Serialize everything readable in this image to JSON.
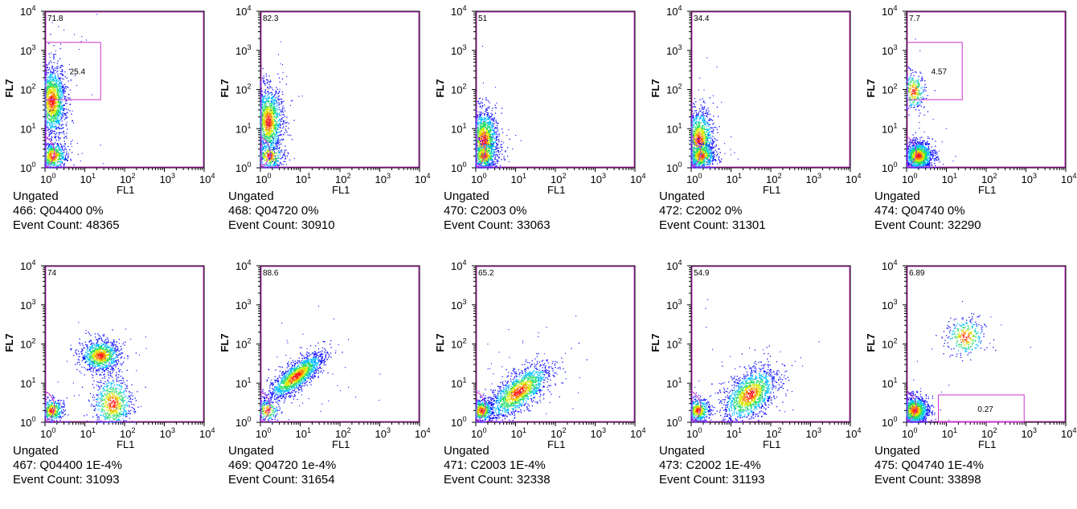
{
  "gate_color": "#cc33cc",
  "density_colors": [
    "#1010ff",
    "#00bfff",
    "#22dd66",
    "#d8e800",
    "#ff8000",
    "#ff1a1a"
  ],
  "chart_data": [
    {
      "type": "scatter",
      "panel_id": "466",
      "x_label": "FL1",
      "y_label": "FL7",
      "x_scale": "log",
      "y_scale": "log",
      "xlim": [
        1,
        10000
      ],
      "ylim": [
        1,
        10000
      ],
      "caption": {
        "gate": "Ungated",
        "sample": "466: Q04400 0%",
        "event_count": "Event Count: 48365"
      },
      "stats": [
        {
          "label": "71.8",
          "region": "large-vertical-gate",
          "corner": "top-left"
        },
        {
          "label": "25.4",
          "region": "upper-rect-gate"
        }
      ],
      "gates": [
        {
          "kind": "rect",
          "x": [
            1,
            25
          ],
          "y": [
            55,
            1600
          ],
          "label": "25.4"
        },
        {
          "kind": "ellipse",
          "cx": 2,
          "cy": 2,
          "rx_dec": 0.3,
          "ry_dec": 0.5
        }
      ],
      "populations": [
        {
          "x": 1.5,
          "y": 50,
          "count": 1400,
          "sx": 0.18,
          "sy": 0.45
        },
        {
          "x": 1.6,
          "y": 2,
          "count": 600,
          "sx": 0.18,
          "sy": 0.18
        }
      ]
    },
    {
      "type": "scatter",
      "panel_id": "468",
      "x_label": "FL1",
      "y_label": "FL7",
      "x_scale": "log",
      "y_scale": "log",
      "xlim": [
        1,
        10000
      ],
      "ylim": [
        1,
        10000
      ],
      "caption": {
        "gate": "Ungated",
        "sample": "468: Q04720 0%",
        "event_count": "Event Count: 30910"
      },
      "stats": [
        {
          "label": "82.3",
          "region": "large-vertical-gate",
          "corner": "top-left"
        }
      ],
      "gates": [
        {
          "kind": "ellipse",
          "cx": 2,
          "cy": 2,
          "rx_dec": 0.3,
          "ry_dec": 0.5
        }
      ],
      "populations": [
        {
          "x": 1.6,
          "y": 15,
          "count": 1300,
          "sx": 0.18,
          "sy": 0.45
        },
        {
          "x": 1.7,
          "y": 2,
          "count": 300,
          "sx": 0.18,
          "sy": 0.18
        }
      ]
    },
    {
      "type": "scatter",
      "panel_id": "470",
      "x_label": "FL1",
      "y_label": "FL7",
      "x_scale": "log",
      "y_scale": "log",
      "xlim": [
        1,
        10000
      ],
      "ylim": [
        1,
        10000
      ],
      "caption": {
        "gate": "Ungated",
        "sample": "470: C2003 0%",
        "event_count": "Event Count: 33063"
      },
      "stats": [
        {
          "label": "51",
          "region": "large-vertical-gate",
          "corner": "top-left"
        }
      ],
      "gates": [
        {
          "kind": "ellipse",
          "cx": 2,
          "cy": 2,
          "rx_dec": 0.3,
          "ry_dec": 0.5
        }
      ],
      "populations": [
        {
          "x": 1.6,
          "y": 5,
          "count": 1300,
          "sx": 0.18,
          "sy": 0.4
        },
        {
          "x": 1.6,
          "y": 2,
          "count": 400,
          "sx": 0.18,
          "sy": 0.18
        }
      ]
    },
    {
      "type": "scatter",
      "panel_id": "472",
      "x_label": "FL1",
      "y_label": "FL7",
      "x_scale": "log",
      "y_scale": "log",
      "xlim": [
        1,
        10000
      ],
      "ylim": [
        1,
        10000
      ],
      "caption": {
        "gate": "Ungated",
        "sample": "472: C2002 0%",
        "event_count": "Event Count: 31301"
      },
      "stats": [
        {
          "label": "34.4",
          "region": "large-vertical-gate",
          "corner": "top-left"
        }
      ],
      "gates": [
        {
          "kind": "ellipse",
          "cx": 2,
          "cy": 2,
          "rx_dec": 0.3,
          "ry_dec": 0.5
        }
      ],
      "populations": [
        {
          "x": 1.6,
          "y": 5,
          "count": 1100,
          "sx": 0.18,
          "sy": 0.4
        },
        {
          "x": 1.8,
          "y": 2,
          "count": 500,
          "sx": 0.18,
          "sy": 0.18
        }
      ]
    },
    {
      "type": "scatter",
      "panel_id": "474",
      "x_label": "FL1",
      "y_label": "FL7",
      "x_scale": "log",
      "y_scale": "log",
      "xlim": [
        1,
        10000
      ],
      "ylim": [
        1,
        10000
      ],
      "caption": {
        "gate": "Ungated",
        "sample": "474: Q04740 0%",
        "event_count": "Event Count: 32290"
      },
      "stats": [
        {
          "label": "7.7",
          "region": "large-vertical-gate",
          "corner": "top-left"
        },
        {
          "label": "4.57",
          "region": "upper-rect-gate"
        }
      ],
      "gates": [
        {
          "kind": "rect",
          "x": [
            1,
            25
          ],
          "y": [
            55,
            1600
          ],
          "label": "4.57"
        },
        {
          "kind": "ellipse",
          "cx": 2,
          "cy": 2,
          "rx_dec": 0.3,
          "ry_dec": 0.5
        }
      ],
      "populations": [
        {
          "x": 1.5,
          "y": 90,
          "count": 300,
          "sx": 0.15,
          "sy": 0.25
        },
        {
          "x": 2,
          "y": 2,
          "count": 1300,
          "sx": 0.18,
          "sy": 0.18
        }
      ]
    },
    {
      "type": "scatter",
      "panel_id": "467",
      "x_label": "FL1",
      "y_label": "FL7",
      "x_scale": "log",
      "y_scale": "log",
      "xlim": [
        1,
        10000
      ],
      "ylim": [
        1,
        10000
      ],
      "caption": {
        "gate": "Ungated",
        "sample": "467: Q04400 1E-4%",
        "event_count": "Event Count: 31093"
      },
      "stats": [
        {
          "label": "74",
          "region": "large-vertical-gate",
          "corner": "top-left"
        }
      ],
      "gates": [
        {
          "kind": "ellipse",
          "cx": 2,
          "cy": 2,
          "rx_dec": 0.3,
          "ry_dec": 0.5
        }
      ],
      "populations": [
        {
          "x": 25,
          "y": 50,
          "count": 900,
          "sx": 0.25,
          "sy": 0.2
        },
        {
          "x": 50,
          "y": 3,
          "count": 700,
          "sx": 0.25,
          "sy": 0.35
        },
        {
          "x": 1.5,
          "y": 2,
          "count": 400,
          "sx": 0.15,
          "sy": 0.15
        }
      ]
    },
    {
      "type": "scatter",
      "panel_id": "469",
      "x_label": "FL1",
      "y_label": "FL7",
      "x_scale": "log",
      "y_scale": "log",
      "xlim": [
        1,
        10000
      ],
      "ylim": [
        1,
        10000
      ],
      "caption": {
        "gate": "Ungated",
        "sample": "469: Q04720 1e-4%",
        "event_count": "Event Count: 31654"
      },
      "stats": [
        {
          "label": "88.6",
          "region": "large-vertical-gate",
          "corner": "top-left"
        }
      ],
      "gates": [
        {
          "kind": "ellipse",
          "cx": 2,
          "cy": 2,
          "rx_dec": 0.3,
          "ry_dec": 0.5
        }
      ],
      "populations": [
        {
          "x": 8,
          "y": 15,
          "count": 1500,
          "sx": 0.35,
          "sy": 0.3,
          "corr": 0.8
        },
        {
          "x": 1.5,
          "y": 2,
          "count": 200,
          "sx": 0.15,
          "sy": 0.15
        }
      ]
    },
    {
      "type": "scatter",
      "panel_id": "471",
      "x_label": "FL1",
      "y_label": "FL7",
      "x_scale": "log",
      "y_scale": "log",
      "xlim": [
        1,
        10000
      ],
      "ylim": [
        1,
        10000
      ],
      "caption": {
        "gate": "Ungated",
        "sample": "471: C2003 1E-4%",
        "event_count": "Event Count: 32338"
      },
      "stats": [
        {
          "label": "65.2",
          "region": "large-vertical-gate",
          "corner": "top-left"
        }
      ],
      "gates": [
        {
          "kind": "ellipse",
          "cx": 2,
          "cy": 2,
          "rx_dec": 0.3,
          "ry_dec": 0.5
        }
      ],
      "populations": [
        {
          "x": 12,
          "y": 6,
          "count": 1400,
          "sx": 0.4,
          "sy": 0.35,
          "corr": 0.7
        },
        {
          "x": 1.4,
          "y": 2,
          "count": 500,
          "sx": 0.15,
          "sy": 0.15
        }
      ]
    },
    {
      "type": "scatter",
      "panel_id": "473",
      "x_label": "FL1",
      "y_label": "FL7",
      "x_scale": "log",
      "y_scale": "log",
      "xlim": [
        1,
        10000
      ],
      "ylim": [
        1,
        10000
      ],
      "caption": {
        "gate": "Ungated",
        "sample": "473: C2002 1E-4%",
        "event_count": "Event Count: 31193"
      },
      "stats": [
        {
          "label": "54.9",
          "region": "large-vertical-gate",
          "corner": "top-left"
        }
      ],
      "gates": [
        {
          "kind": "ellipse",
          "cx": 2,
          "cy": 2,
          "rx_dec": 0.3,
          "ry_dec": 0.5
        }
      ],
      "populations": [
        {
          "x": 30,
          "y": 5,
          "count": 1300,
          "sx": 0.35,
          "sy": 0.35,
          "corr": 0.5
        },
        {
          "x": 1.5,
          "y": 2,
          "count": 500,
          "sx": 0.15,
          "sy": 0.15
        }
      ]
    },
    {
      "type": "scatter",
      "panel_id": "475",
      "x_label": "FL1",
      "y_label": "FL7",
      "x_scale": "log",
      "y_scale": "log",
      "xlim": [
        1,
        10000
      ],
      "ylim": [
        1,
        10000
      ],
      "caption": {
        "gate": "Ungated",
        "sample": "475: Q04740 1E-4%",
        "event_count": "Event Count: 33898"
      },
      "stats": [
        {
          "label": "6.89",
          "region": "large-vertical-gate",
          "corner": "top-left"
        },
        {
          "label": "0.27",
          "region": "lower-rect-gate"
        }
      ],
      "gates": [
        {
          "kind": "rect",
          "x": [
            6,
            900
          ],
          "y": [
            1,
            5
          ],
          "label": "0.27"
        },
        {
          "kind": "ellipse",
          "cx": 2,
          "cy": 2,
          "rx_dec": 0.3,
          "ry_dec": 0.5
        }
      ],
      "populations": [
        {
          "x": 30,
          "y": 150,
          "count": 300,
          "sx": 0.25,
          "sy": 0.25
        },
        {
          "x": 1.6,
          "y": 2,
          "count": 1300,
          "sx": 0.18,
          "sy": 0.18
        }
      ]
    }
  ]
}
